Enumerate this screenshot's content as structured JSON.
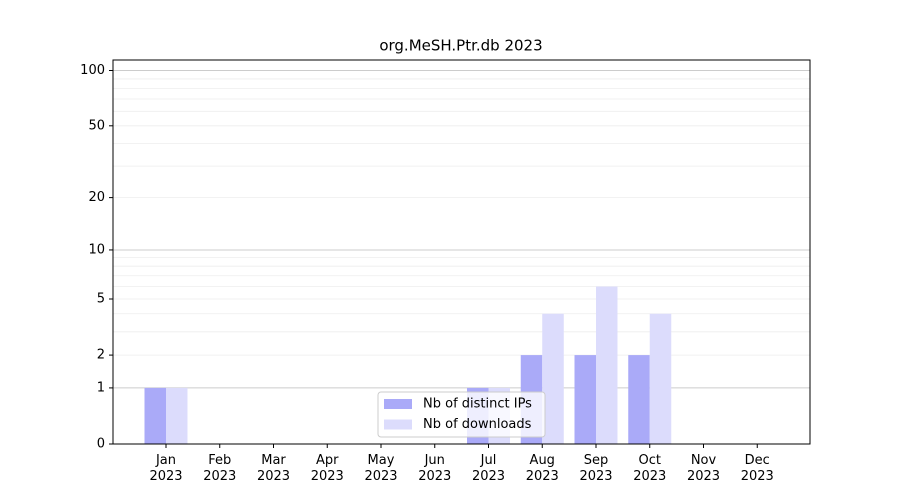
{
  "chart_data": {
    "type": "bar",
    "title": "org.MeSH.Ptr.db 2023",
    "categories": [
      "Jan\n2023",
      "Feb\n2023",
      "Mar\n2023",
      "Apr\n2023",
      "May\n2023",
      "Jun\n2023",
      "Jul\n2023",
      "Aug\n2023",
      "Sep\n2023",
      "Oct\n2023",
      "Nov\n2023",
      "Dec\n2023"
    ],
    "series": [
      {
        "name": "Nb of distinct IPs",
        "color": "#aaaaf8",
        "values": [
          1,
          0,
          0,
          0,
          0,
          0,
          1,
          2,
          2,
          2,
          0,
          0
        ]
      },
      {
        "name": "Nb of downloads",
        "color": "#dcdcfc",
        "values": [
          1,
          0,
          0,
          0,
          0,
          0,
          1,
          4,
          6,
          4,
          0,
          0
        ]
      }
    ],
    "y_scale": "log1p",
    "ylim": [
      0,
      114
    ],
    "yticks": [
      0,
      1,
      2,
      5,
      10,
      20,
      50,
      100
    ],
    "major_grid": [
      1,
      10,
      100
    ],
    "minor_grid": [
      2,
      3,
      4,
      5,
      6,
      7,
      8,
      9,
      20,
      30,
      40,
      50,
      60,
      70,
      80,
      90
    ],
    "grid": true,
    "legend": "lower center"
  }
}
